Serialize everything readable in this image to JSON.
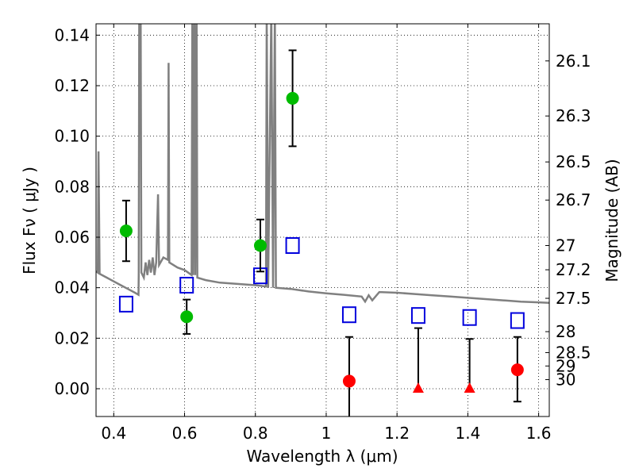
{
  "chart_data": {
    "type": "scatter",
    "xlabel": "Wavelength  λ (μm)",
    "ylabel": "Flux  Fν  ( μJy )",
    "ylabel_right": "Magnitude (AB)",
    "xlim": [
      0.35,
      1.63
    ],
    "ylim": [
      -0.011,
      0.1445
    ],
    "grid": true,
    "x_ticks": [
      0.4,
      0.6,
      0.8,
      1.0,
      1.2,
      1.4,
      1.6
    ],
    "x_tick_labels": [
      "0.4",
      "0.6",
      "0.8",
      "1",
      "1.2",
      "1.4",
      "1.6"
    ],
    "y_ticks": [
      0.0,
      0.02,
      0.04,
      0.06,
      0.08,
      0.1,
      0.12,
      0.14
    ],
    "y_tick_labels": [
      "0.00",
      "0.02",
      "0.04",
      "0.06",
      "0.08",
      "0.10",
      "0.12",
      "0.14"
    ],
    "right_ticks": [
      {
        "label": "26.1",
        "flux": 0.1298
      },
      {
        "label": "26.3",
        "flux": 0.108
      },
      {
        "label": "26.5",
        "flux": 0.0898
      },
      {
        "label": "26.7",
        "flux": 0.0747
      },
      {
        "label": "27",
        "flux": 0.0567
      },
      {
        "label": "27.2",
        "flux": 0.0471
      },
      {
        "label": "27.5",
        "flux": 0.0358
      },
      {
        "label": "28",
        "flux": 0.0226
      },
      {
        "label": "28.5",
        "flux": 0.0143
      },
      {
        "label": "29",
        "flux": 0.009
      },
      {
        "label": "30",
        "flux": 0.0036
      }
    ],
    "series": [
      {
        "kind": "detections",
        "color": "#00bb00",
        "points": [
          {
            "x": 0.435,
            "y": 0.0625,
            "err": 0.012
          },
          {
            "x": 0.606,
            "y": 0.0285,
            "err": 0.0068
          },
          {
            "x": 0.814,
            "y": 0.0567,
            "err": 0.0103
          },
          {
            "x": 0.905,
            "y": 0.115,
            "err": 0.019
          }
        ]
      },
      {
        "kind": "non-detections",
        "color": "#ff0000",
        "points": [
          {
            "x": 1.065,
            "y": 0.003,
            "err_up": 0.0175,
            "err_down": 0.02,
            "marker": "circle"
          },
          {
            "x": 1.26,
            "y": 0.0,
            "err_up": 0.024,
            "err_down": 0.0,
            "marker": "triangle"
          },
          {
            "x": 1.405,
            "y": 0.0,
            "err_up": 0.0197,
            "err_down": 0.0,
            "marker": "triangle"
          },
          {
            "x": 1.54,
            "y": 0.0075,
            "err_up": 0.013,
            "err_down": 0.0126,
            "marker": "circle"
          }
        ]
      },
      {
        "kind": "model-bandpass",
        "color": "#0000dd",
        "points": [
          {
            "x": 0.435,
            "y": 0.0335
          },
          {
            "x": 0.606,
            "y": 0.041
          },
          {
            "x": 0.814,
            "y": 0.0447
          },
          {
            "x": 0.905,
            "y": 0.0567
          },
          {
            "x": 1.065,
            "y": 0.0293
          },
          {
            "x": 1.26,
            "y": 0.029
          },
          {
            "x": 1.405,
            "y": 0.0282
          },
          {
            "x": 1.54,
            "y": 0.027
          }
        ]
      },
      {
        "kind": "model-spectrum",
        "color": "#808080",
        "points": [
          [
            0.35,
            0.0465
          ],
          [
            0.355,
            0.046
          ],
          [
            0.357,
            0.094
          ],
          [
            0.36,
            0.0455
          ],
          [
            0.38,
            0.044
          ],
          [
            0.4,
            0.0425
          ],
          [
            0.42,
            0.041
          ],
          [
            0.44,
            0.0395
          ],
          [
            0.46,
            0.038
          ],
          [
            0.47,
            0.0372
          ],
          [
            0.4705,
            0.046
          ],
          [
            0.472,
            0.15
          ],
          [
            0.476,
            0.15
          ],
          [
            0.478,
            0.046
          ],
          [
            0.485,
            0.044
          ],
          [
            0.49,
            0.05
          ],
          [
            0.495,
            0.045
          ],
          [
            0.5,
            0.051
          ],
          [
            0.505,
            0.046
          ],
          [
            0.51,
            0.052
          ],
          [
            0.515,
            0.045
          ],
          [
            0.52,
            0.05
          ],
          [
            0.525,
            0.077
          ],
          [
            0.528,
            0.049
          ],
          [
            0.54,
            0.052
          ],
          [
            0.553,
            0.051
          ],
          [
            0.555,
            0.129
          ],
          [
            0.557,
            0.05
          ],
          [
            0.58,
            0.048
          ],
          [
            0.6,
            0.047
          ],
          [
            0.62,
            0.045
          ],
          [
            0.622,
            0.15
          ],
          [
            0.624,
            0.045
          ],
          [
            0.628,
            0.15
          ],
          [
            0.63,
            0.045
          ],
          [
            0.634,
            0.15
          ],
          [
            0.636,
            0.044
          ],
          [
            0.66,
            0.043
          ],
          [
            0.7,
            0.042
          ],
          [
            0.75,
            0.0415
          ],
          [
            0.8,
            0.041
          ],
          [
            0.83,
            0.0405
          ],
          [
            0.832,
            0.15
          ],
          [
            0.836,
            0.04
          ],
          [
            0.845,
            0.15
          ],
          [
            0.85,
            0.04
          ],
          [
            0.855,
            0.15
          ],
          [
            0.858,
            0.04
          ],
          [
            0.9,
            0.0395
          ],
          [
            0.95,
            0.0385
          ],
          [
            1.0,
            0.0378
          ],
          [
            1.05,
            0.0372
          ],
          [
            1.1,
            0.0365
          ],
          [
            1.11,
            0.0345
          ],
          [
            1.12,
            0.037
          ],
          [
            1.13,
            0.035
          ],
          [
            1.15,
            0.0383
          ],
          [
            1.2,
            0.038
          ],
          [
            1.25,
            0.0375
          ],
          [
            1.3,
            0.037
          ],
          [
            1.35,
            0.0365
          ],
          [
            1.4,
            0.036
          ],
          [
            1.45,
            0.0355
          ],
          [
            1.5,
            0.035
          ],
          [
            1.55,
            0.0345
          ],
          [
            1.6,
            0.0342
          ],
          [
            1.63,
            0.034
          ]
        ]
      }
    ]
  }
}
